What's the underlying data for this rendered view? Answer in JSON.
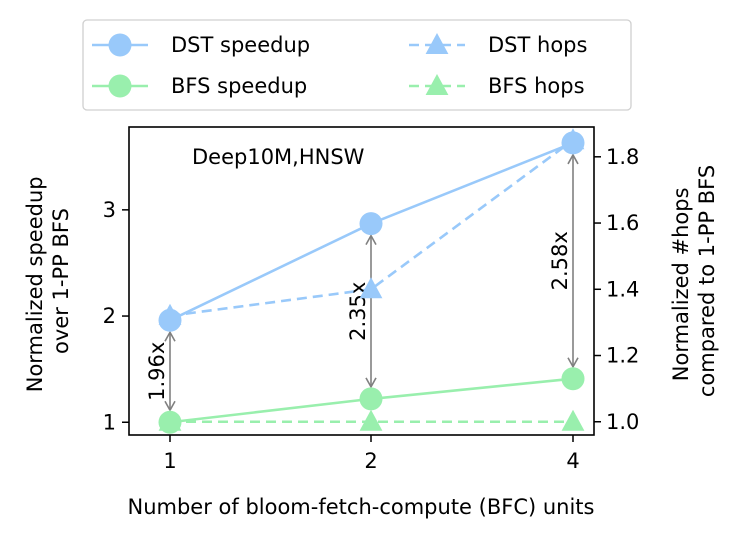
{
  "chart_data": {
    "type": "line",
    "annotation_title": "Deep10M,HNSW",
    "xlabel": "Number of bloom-fetch-compute (BFC) units",
    "ylabel_left": [
      "Normalized speedup",
      "over 1-PP BFS"
    ],
    "ylabel_right": [
      "Normalized #hops",
      "compared to 1-PP BFS"
    ],
    "categories": [
      "1",
      "2",
      "4"
    ],
    "ylim_left": [
      0.88,
      3.78
    ],
    "ylim_right": [
      0.96,
      1.89
    ],
    "yticks_left": [
      1,
      2,
      3
    ],
    "yticks_right": [
      "1.0",
      "1.2",
      "1.4",
      "1.6",
      "1.8"
    ],
    "series": [
      {
        "name": "DST speedup",
        "axis": "left",
        "values": [
          1.96,
          2.87,
          3.63
        ],
        "color": "#99c9fa",
        "marker": "circle",
        "dashed": false
      },
      {
        "name": "BFS speedup",
        "axis": "left",
        "values": [
          1.0,
          1.22,
          1.41
        ],
        "color": "#99efad",
        "marker": "circle",
        "dashed": false
      },
      {
        "name": "DST hops",
        "axis": "right",
        "values": [
          1.32,
          1.4,
          1.85
        ],
        "color": "#99c9fa",
        "marker": "triangle",
        "dashed": true
      },
      {
        "name": "BFS hops",
        "axis": "right",
        "values": [
          1.0,
          1.0,
          1.0
        ],
        "color": "#99efad",
        "marker": "triangle",
        "dashed": true
      }
    ],
    "arrows": [
      {
        "category": "1",
        "label": "1.96x"
      },
      {
        "category": "2",
        "label": "2.35x"
      },
      {
        "category": "4",
        "label": "2.58x"
      }
    ],
    "legend_position": "top, 2 columns",
    "arrow_color": "#808080"
  }
}
